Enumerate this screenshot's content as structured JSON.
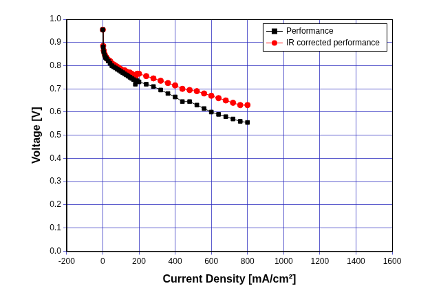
{
  "chart_data": {
    "type": "line",
    "x_label": "Current Density [mA/cm²]",
    "y_label": "Voltage [V]",
    "x": [
      0,
      2,
      5,
      10,
      15,
      20,
      30,
      40,
      50,
      60,
      70,
      80,
      90,
      100,
      110,
      120,
      130,
      140,
      150,
      160,
      170,
      180,
      190,
      200,
      240,
      280,
      320,
      360,
      400,
      440,
      480,
      520,
      560,
      600,
      640,
      680,
      720,
      760,
      800
    ],
    "series": [
      {
        "name": "Performance",
        "color": "#000000",
        "marker": "square",
        "line_style": "solid",
        "values": [
          0.955,
          0.88,
          0.86,
          0.845,
          0.835,
          0.83,
          0.82,
          0.81,
          0.8,
          0.795,
          0.79,
          0.785,
          0.78,
          0.775,
          0.77,
          0.765,
          0.76,
          0.755,
          0.75,
          0.745,
          0.74,
          0.72,
          0.735,
          0.73,
          0.72,
          0.71,
          0.695,
          0.68,
          0.665,
          0.645,
          0.645,
          0.63,
          0.615,
          0.6,
          0.59,
          0.58,
          0.57,
          0.56,
          0.555
        ]
      },
      {
        "name": "IR corrected performance",
        "color": "#ff0000",
        "marker": "circle",
        "line_style": "solid",
        "values": [
          0.955,
          0.885,
          0.865,
          0.85,
          0.84,
          0.835,
          0.825,
          0.82,
          0.81,
          0.805,
          0.8,
          0.795,
          0.79,
          0.785,
          0.78,
          0.78,
          0.775,
          0.77,
          0.77,
          0.765,
          0.76,
          0.75,
          0.765,
          0.765,
          0.755,
          0.745,
          0.735,
          0.725,
          0.715,
          0.7,
          0.695,
          0.69,
          0.68,
          0.67,
          0.66,
          0.65,
          0.64,
          0.63,
          0.63
        ]
      }
    ],
    "xlim": [
      -200,
      1600
    ],
    "xticks": [
      -200,
      0,
      200,
      400,
      600,
      800,
      1000,
      1200,
      1400,
      1600
    ],
    "ylim": [
      0,
      1
    ],
    "yticks": [
      {
        "value": 0,
        "label": "0.0"
      },
      0.1,
      0.2,
      0.3,
      0.4,
      0.5,
      0.6,
      0.7,
      0.8,
      0.9,
      {
        "value": 1,
        "label": "1.0"
      }
    ],
    "grid": true,
    "legend": "upper right"
  }
}
